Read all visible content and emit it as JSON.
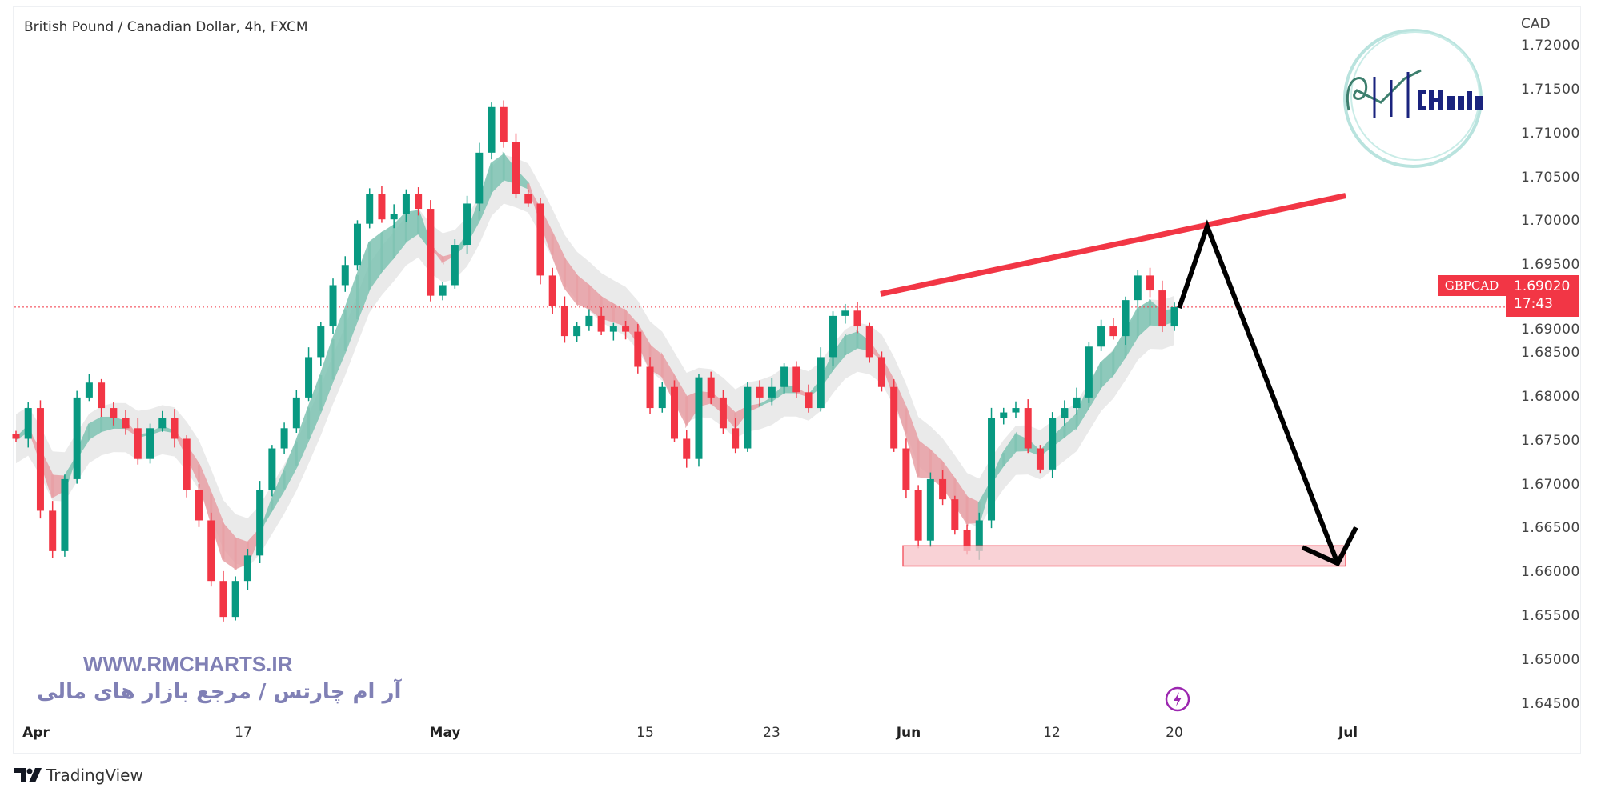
{
  "title": "British Pound / Canadian Dollar, 4h, FXCM",
  "currency": "CAD",
  "symbol": "GBPCAD",
  "current_price": "1.69020",
  "countdown": "17:43",
  "watermark": {
    "url": "WWW.RMCHARTS.IR",
    "tagline": "آر ام چارتس / مرجع بازار های مالی",
    "logo_text": "RM Charts"
  },
  "branding": "TradingView",
  "colors": {
    "up": "#089981",
    "down": "#f23645",
    "trendline": "#f23645",
    "zone": "#f23645",
    "arrow": "#000000",
    "watermark": "#8080b5"
  },
  "chart_data": {
    "type": "candlestick",
    "interval": "4h",
    "ylim": [
      1.642,
      1.722
    ],
    "y_ticks": [
      "1.72000",
      "1.71500",
      "1.71000",
      "1.70500",
      "1.70000",
      "1.69500",
      "1.69000",
      "1.68500",
      "1.68000",
      "1.67500",
      "1.67000",
      "1.66500",
      "1.66000",
      "1.65500",
      "1.65000",
      "1.64500"
    ],
    "x_ticks": [
      {
        "label": "Apr",
        "major": true
      },
      {
        "label": "17",
        "major": false
      },
      {
        "label": "May",
        "major": true
      },
      {
        "label": "15",
        "major": false
      },
      {
        "label": "23",
        "major": false
      },
      {
        "label": "Jun",
        "major": true
      },
      {
        "label": "12",
        "major": false
      },
      {
        "label": "20",
        "major": false
      },
      {
        "label": "Jul",
        "major": true
      }
    ],
    "close": [
      1.6752,
      1.6787,
      1.667,
      1.6624,
      1.6706,
      1.6799,
      1.6816,
      1.6787,
      1.6776,
      1.6764,
      1.6729,
      1.6764,
      1.6776,
      1.6752,
      1.6694,
      1.6659,
      1.659,
      1.6549,
      1.659,
      1.6619,
      1.6694,
      1.6741,
      1.6764,
      1.6799,
      1.6845,
      1.688,
      1.6927,
      1.695,
      1.6997,
      1.7031,
      1.7002,
      1.7008,
      1.7031,
      1.7014,
      1.6915,
      1.6927,
      1.6973,
      1.702,
      1.7078,
      1.713,
      1.709,
      1.7031,
      1.702,
      1.6938,
      1.6903,
      1.6869,
      1.688,
      1.6892,
      1.6874,
      1.688,
      1.6874,
      1.6834,
      1.6787,
      1.6811,
      1.6752,
      1.6729,
      1.6822,
      1.6799,
      1.6764,
      1.6741,
      1.6811,
      1.6799,
      1.6811,
      1.6834,
      1.6805,
      1.6787,
      1.6845,
      1.6892,
      1.6898,
      1.688,
      1.6845,
      1.6811,
      1.6741,
      1.6694,
      1.6636,
      1.6706,
      1.6683,
      1.6648,
      1.6624,
      1.6659,
      1.6776,
      1.6782,
      1.6787,
      1.6741,
      1.6717,
      1.6776,
      1.6787,
      1.6799,
      1.6857,
      1.688,
      1.6869,
      1.691,
      1.6938,
      1.6921,
      1.688,
      1.6902
    ],
    "annotations": {
      "resistance_trendline": {
        "from_price": 1.6917,
        "to_price": 1.7029
      },
      "support_zone": {
        "top": 1.663,
        "bottom": 1.6607
      },
      "projection_path": [
        1.6901,
        1.6994,
        1.661
      ],
      "last_price_line": 1.6902
    },
    "indicator": "moving-average ribbon with envelope"
  },
  "icons": {
    "events": "lightning-icon",
    "brand": "tradingview-logo-icon"
  }
}
